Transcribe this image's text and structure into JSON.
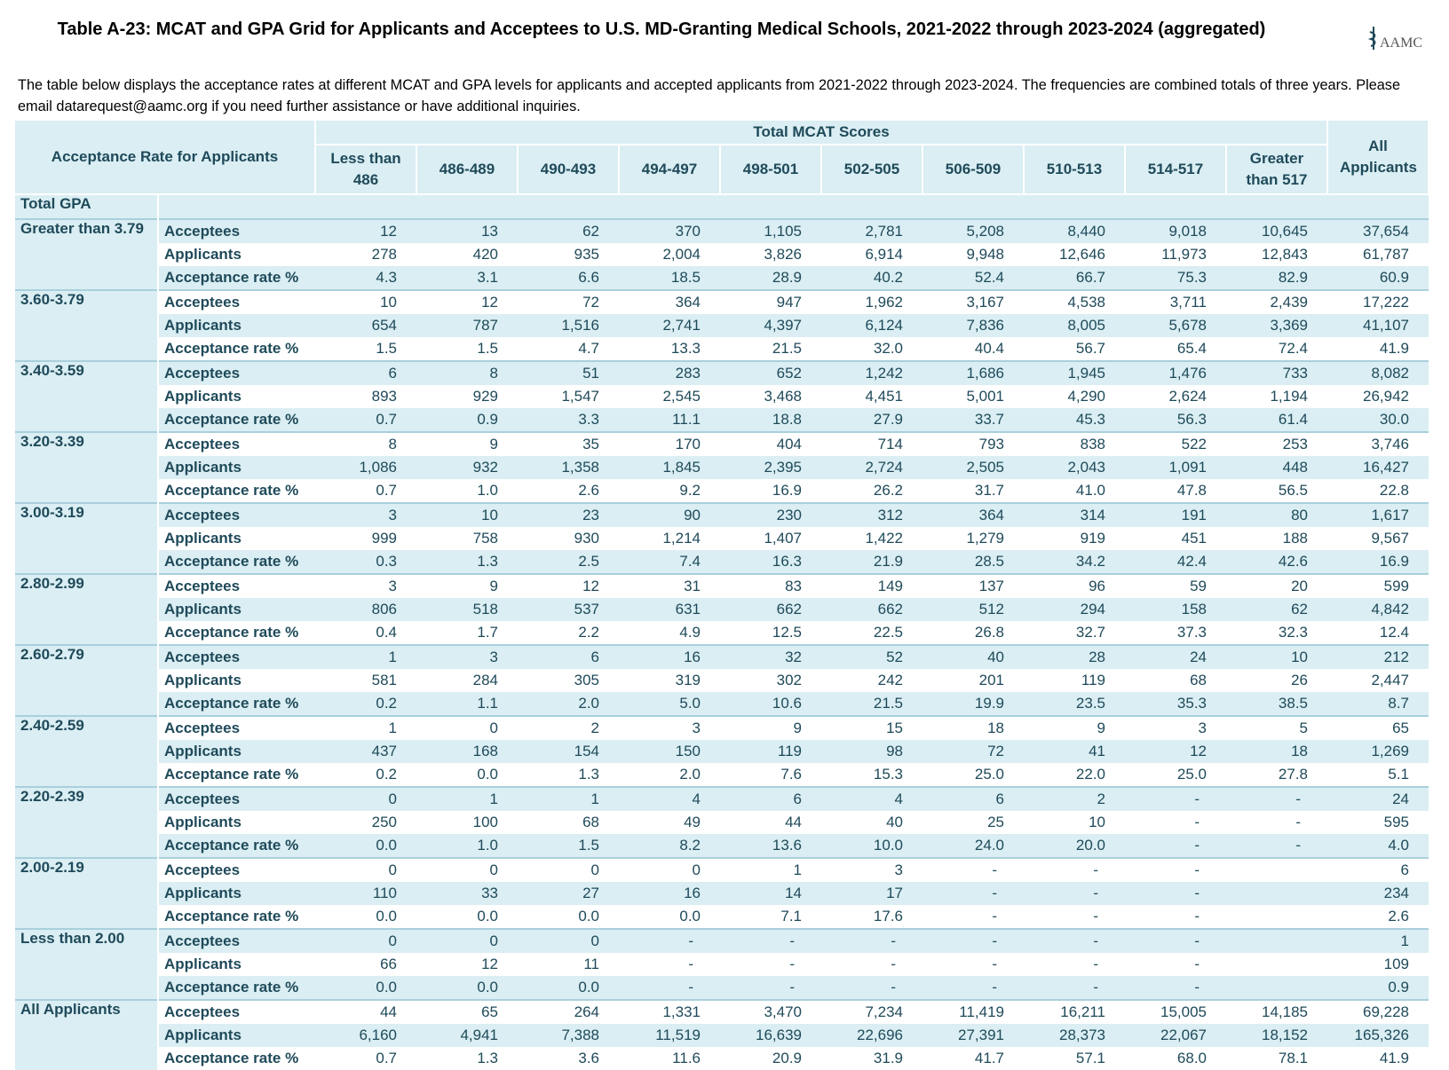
{
  "header": {
    "title": "Table A-23: MCAT and GPA Grid for Applicants and Acceptees to U.S. MD-Granting Medical Schools, 2021-2022 through 2023-2024 (aggregated)",
    "logo": "AAMC"
  },
  "intro": "The table below displays the acceptance rates at different MCAT and GPA levels for applicants and accepted applicants  from 2021-2022 through 2023-2024. The frequencies are combined totals of three years. Please email datarequest@aamc.org if you need further assistance or have additional inquiries.",
  "table": {
    "corner": "Acceptance Rate for Applicants",
    "group_header": "Total MCAT Scores",
    "columns": [
      "Less than 486",
      "486-489",
      "490-493",
      "494-497",
      "498-501",
      "502-505",
      "506-509",
      "510-513",
      "514-517",
      "Greater than 517",
      "All Applicants"
    ],
    "gpa_label": "Total GPA",
    "groups": [
      {
        "gpa": "Greater than 3.79",
        "rows": [
          {
            "label": "Acceptees",
            "cells": [
              "12",
              "13",
              "62",
              "370",
              "1,105",
              "2,781",
              "5,208",
              "8,440",
              "9,018",
              "10,645",
              "37,654"
            ]
          },
          {
            "label": "Applicants",
            "cells": [
              "278",
              "420",
              "935",
              "2,004",
              "3,826",
              "6,914",
              "9,948",
              "12,646",
              "11,973",
              "12,843",
              "61,787"
            ]
          },
          {
            "label": "Acceptance rate %",
            "cells": [
              "4.3",
              "3.1",
              "6.6",
              "18.5",
              "28.9",
              "40.2",
              "52.4",
              "66.7",
              "75.3",
              "82.9",
              "60.9"
            ]
          }
        ]
      },
      {
        "gpa": "3.60-3.79",
        "rows": [
          {
            "label": "Acceptees",
            "cells": [
              "10",
              "12",
              "72",
              "364",
              "947",
              "1,962",
              "3,167",
              "4,538",
              "3,711",
              "2,439",
              "17,222"
            ]
          },
          {
            "label": "Applicants",
            "cells": [
              "654",
              "787",
              "1,516",
              "2,741",
              "4,397",
              "6,124",
              "7,836",
              "8,005",
              "5,678",
              "3,369",
              "41,107"
            ]
          },
          {
            "label": "Acceptance rate %",
            "cells": [
              "1.5",
              "1.5",
              "4.7",
              "13.3",
              "21.5",
              "32.0",
              "40.4",
              "56.7",
              "65.4",
              "72.4",
              "41.9"
            ]
          }
        ]
      },
      {
        "gpa": "3.40-3.59",
        "rows": [
          {
            "label": "Acceptees",
            "cells": [
              "6",
              "8",
              "51",
              "283",
              "652",
              "1,242",
              "1,686",
              "1,945",
              "1,476",
              "733",
              "8,082"
            ]
          },
          {
            "label": "Applicants",
            "cells": [
              "893",
              "929",
              "1,547",
              "2,545",
              "3,468",
              "4,451",
              "5,001",
              "4,290",
              "2,624",
              "1,194",
              "26,942"
            ]
          },
          {
            "label": "Acceptance rate %",
            "cells": [
              "0.7",
              "0.9",
              "3.3",
              "11.1",
              "18.8",
              "27.9",
              "33.7",
              "45.3",
              "56.3",
              "61.4",
              "30.0"
            ]
          }
        ]
      },
      {
        "gpa": "3.20-3.39",
        "rows": [
          {
            "label": "Acceptees",
            "cells": [
              "8",
              "9",
              "35",
              "170",
              "404",
              "714",
              "793",
              "838",
              "522",
              "253",
              "3,746"
            ]
          },
          {
            "label": "Applicants",
            "cells": [
              "1,086",
              "932",
              "1,358",
              "1,845",
              "2,395",
              "2,724",
              "2,505",
              "2,043",
              "1,091",
              "448",
              "16,427"
            ]
          },
          {
            "label": "Acceptance rate %",
            "cells": [
              "0.7",
              "1.0",
              "2.6",
              "9.2",
              "16.9",
              "26.2",
              "31.7",
              "41.0",
              "47.8",
              "56.5",
              "22.8"
            ]
          }
        ]
      },
      {
        "gpa": "3.00-3.19",
        "rows": [
          {
            "label": "Acceptees",
            "cells": [
              "3",
              "10",
              "23",
              "90",
              "230",
              "312",
              "364",
              "314",
              "191",
              "80",
              "1,617"
            ]
          },
          {
            "label": "Applicants",
            "cells": [
              "999",
              "758",
              "930",
              "1,214",
              "1,407",
              "1,422",
              "1,279",
              "919",
              "451",
              "188",
              "9,567"
            ]
          },
          {
            "label": "Acceptance rate %",
            "cells": [
              "0.3",
              "1.3",
              "2.5",
              "7.4",
              "16.3",
              "21.9",
              "28.5",
              "34.2",
              "42.4",
              "42.6",
              "16.9"
            ]
          }
        ]
      },
      {
        "gpa": "2.80-2.99",
        "rows": [
          {
            "label": "Acceptees",
            "cells": [
              "3",
              "9",
              "12",
              "31",
              "83",
              "149",
              "137",
              "96",
              "59",
              "20",
              "599"
            ]
          },
          {
            "label": "Applicants",
            "cells": [
              "806",
              "518",
              "537",
              "631",
              "662",
              "662",
              "512",
              "294",
              "158",
              "62",
              "4,842"
            ]
          },
          {
            "label": "Acceptance rate %",
            "cells": [
              "0.4",
              "1.7",
              "2.2",
              "4.9",
              "12.5",
              "22.5",
              "26.8",
              "32.7",
              "37.3",
              "32.3",
              "12.4"
            ]
          }
        ]
      },
      {
        "gpa": "2.60-2.79",
        "rows": [
          {
            "label": "Acceptees",
            "cells": [
              "1",
              "3",
              "6",
              "16",
              "32",
              "52",
              "40",
              "28",
              "24",
              "10",
              "212"
            ]
          },
          {
            "label": "Applicants",
            "cells": [
              "581",
              "284",
              "305",
              "319",
              "302",
              "242",
              "201",
              "119",
              "68",
              "26",
              "2,447"
            ]
          },
          {
            "label": "Acceptance rate %",
            "cells": [
              "0.2",
              "1.1",
              "2.0",
              "5.0",
              "10.6",
              "21.5",
              "19.9",
              "23.5",
              "35.3",
              "38.5",
              "8.7"
            ]
          }
        ]
      },
      {
        "gpa": "2.40-2.59",
        "rows": [
          {
            "label": "Acceptees",
            "cells": [
              "1",
              "0",
              "2",
              "3",
              "9",
              "15",
              "18",
              "9",
              "3",
              "5",
              "65"
            ]
          },
          {
            "label": "Applicants",
            "cells": [
              "437",
              "168",
              "154",
              "150",
              "119",
              "98",
              "72",
              "41",
              "12",
              "18",
              "1,269"
            ]
          },
          {
            "label": "Acceptance rate %",
            "cells": [
              "0.2",
              "0.0",
              "1.3",
              "2.0",
              "7.6",
              "15.3",
              "25.0",
              "22.0",
              "25.0",
              "27.8",
              "5.1"
            ]
          }
        ]
      },
      {
        "gpa": "2.20-2.39",
        "rows": [
          {
            "label": "Acceptees",
            "cells": [
              "0",
              "1",
              "1",
              "4",
              "6",
              "4",
              "6",
              "2",
              "-",
              "-",
              "24"
            ]
          },
          {
            "label": "Applicants",
            "cells": [
              "250",
              "100",
              "68",
              "49",
              "44",
              "40",
              "25",
              "10",
              "-",
              "-",
              "595"
            ]
          },
          {
            "label": "Acceptance rate %",
            "cells": [
              "0.0",
              "1.0",
              "1.5",
              "8.2",
              "13.6",
              "10.0",
              "24.0",
              "20.0",
              "-",
              "-",
              "4.0"
            ]
          }
        ]
      },
      {
        "gpa": "2.00-2.19",
        "rows": [
          {
            "label": "Acceptees",
            "cells": [
              "0",
              "0",
              "0",
              "0",
              "1",
              "3",
              "-",
              "-",
              "-",
              null,
              "6"
            ]
          },
          {
            "label": "Applicants",
            "cells": [
              "110",
              "33",
              "27",
              "16",
              "14",
              "17",
              "-",
              "-",
              "-",
              null,
              "234"
            ]
          },
          {
            "label": "Acceptance rate %",
            "cells": [
              "0.0",
              "0.0",
              "0.0",
              "0.0",
              "7.1",
              "17.6",
              "-",
              "-",
              "-",
              null,
              "2.6"
            ]
          }
        ]
      },
      {
        "gpa": "Less than 2.00",
        "rows": [
          {
            "label": "Acceptees",
            "cells": [
              "0",
              "0",
              "0",
              "-",
              "-",
              "-",
              "-",
              "-",
              "-",
              null,
              "1"
            ]
          },
          {
            "label": "Applicants",
            "cells": [
              "66",
              "12",
              "11",
              "-",
              "-",
              "-",
              "-",
              "-",
              "-",
              null,
              "109"
            ]
          },
          {
            "label": "Acceptance rate %",
            "cells": [
              "0.0",
              "0.0",
              "0.0",
              "-",
              "-",
              "-",
              "-",
              "-",
              "-",
              null,
              "0.9"
            ]
          }
        ]
      },
      {
        "gpa": "All Applicants",
        "rows": [
          {
            "label": "Acceptees",
            "cells": [
              "44",
              "65",
              "264",
              "1,331",
              "3,470",
              "7,234",
              "11,419",
              "16,211",
              "15,005",
              "14,185",
              "69,228"
            ]
          },
          {
            "label": "Applicants",
            "cells": [
              "6,160",
              "4,941",
              "7,388",
              "11,519",
              "16,639",
              "22,696",
              "27,391",
              "28,373",
              "22,067",
              "18,152",
              "165,326"
            ]
          },
          {
            "label": "Acceptance rate %",
            "cells": [
              "0.7",
              "1.3",
              "3.6",
              "11.6",
              "20.9",
              "31.9",
              "41.7",
              "57.1",
              "68.0",
              "78.1",
              "41.9"
            ]
          }
        ]
      }
    ]
  }
}
